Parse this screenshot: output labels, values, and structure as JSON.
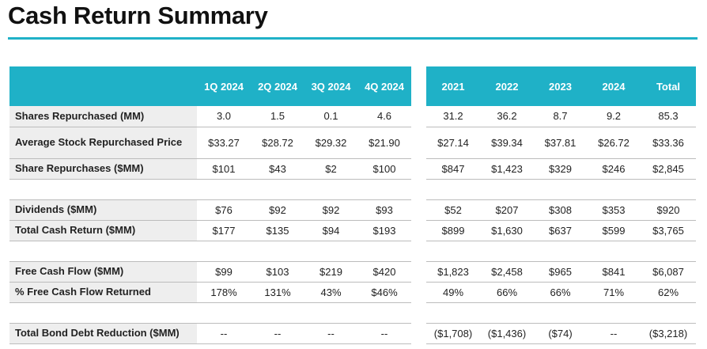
{
  "title": "Cash Return Summary",
  "colors": {
    "accent": "#1fb1c7",
    "label_bg": "#eeeeee",
    "rule": "#bcbcbc"
  },
  "quarterly": {
    "headers": [
      "1Q 2024",
      "2Q 2024",
      "3Q 2024",
      "4Q 2024"
    ]
  },
  "annual": {
    "headers": [
      "2021",
      "2022",
      "2023",
      "2024",
      "Total"
    ]
  },
  "rows": [
    {
      "label": "Shares Repurchased (MM)",
      "q": [
        "3.0",
        "1.5",
        "0.1",
        "4.6"
      ],
      "a": [
        "31.2",
        "36.2",
        "8.7",
        "9.2",
        "85.3"
      ]
    },
    {
      "label": "Average Stock Repurchased Price",
      "q": [
        "$33.27",
        "$28.72",
        "$29.32",
        "$21.90"
      ],
      "a": [
        "$27.14",
        "$39.34",
        "$37.81",
        "$26.72",
        "$33.36"
      ]
    },
    {
      "label": "Share Repurchases ($MM)",
      "q": [
        "$101",
        "$43",
        "$2",
        "$100"
      ],
      "a": [
        "$847",
        "$1,423",
        "$329",
        "$246",
        "$2,845"
      ]
    },
    {
      "spacer": true
    },
    {
      "label": "Dividends ($MM)",
      "q": [
        "$76",
        "$92",
        "$92",
        "$93"
      ],
      "a": [
        "$52",
        "$207",
        "$308",
        "$353",
        "$920"
      ]
    },
    {
      "label": "Total Cash Return ($MM)",
      "q": [
        "$177",
        "$135",
        "$94",
        "$193"
      ],
      "a": [
        "$899",
        "$1,630",
        "$637",
        "$599",
        "$3,765"
      ]
    },
    {
      "spacer": true
    },
    {
      "label": "Free Cash Flow ($MM)",
      "q": [
        "$99",
        "$103",
        "$219",
        "$420"
      ],
      "a": [
        "$1,823",
        "$2,458",
        "$965",
        "$841",
        "$6,087"
      ]
    },
    {
      "label": "% Free Cash Flow Returned",
      "q": [
        "178%",
        "131%",
        "43%",
        "$46%"
      ],
      "a": [
        "49%",
        "66%",
        "66%",
        "71%",
        "62%"
      ]
    },
    {
      "spacer": true
    },
    {
      "label": "Total Bond Debt Reduction ($MM)",
      "q": [
        "--",
        "--",
        "--",
        "--"
      ],
      "a": [
        "($1,708)",
        "($1,436)",
        "($74)",
        "--",
        "($3,218)"
      ]
    }
  ]
}
